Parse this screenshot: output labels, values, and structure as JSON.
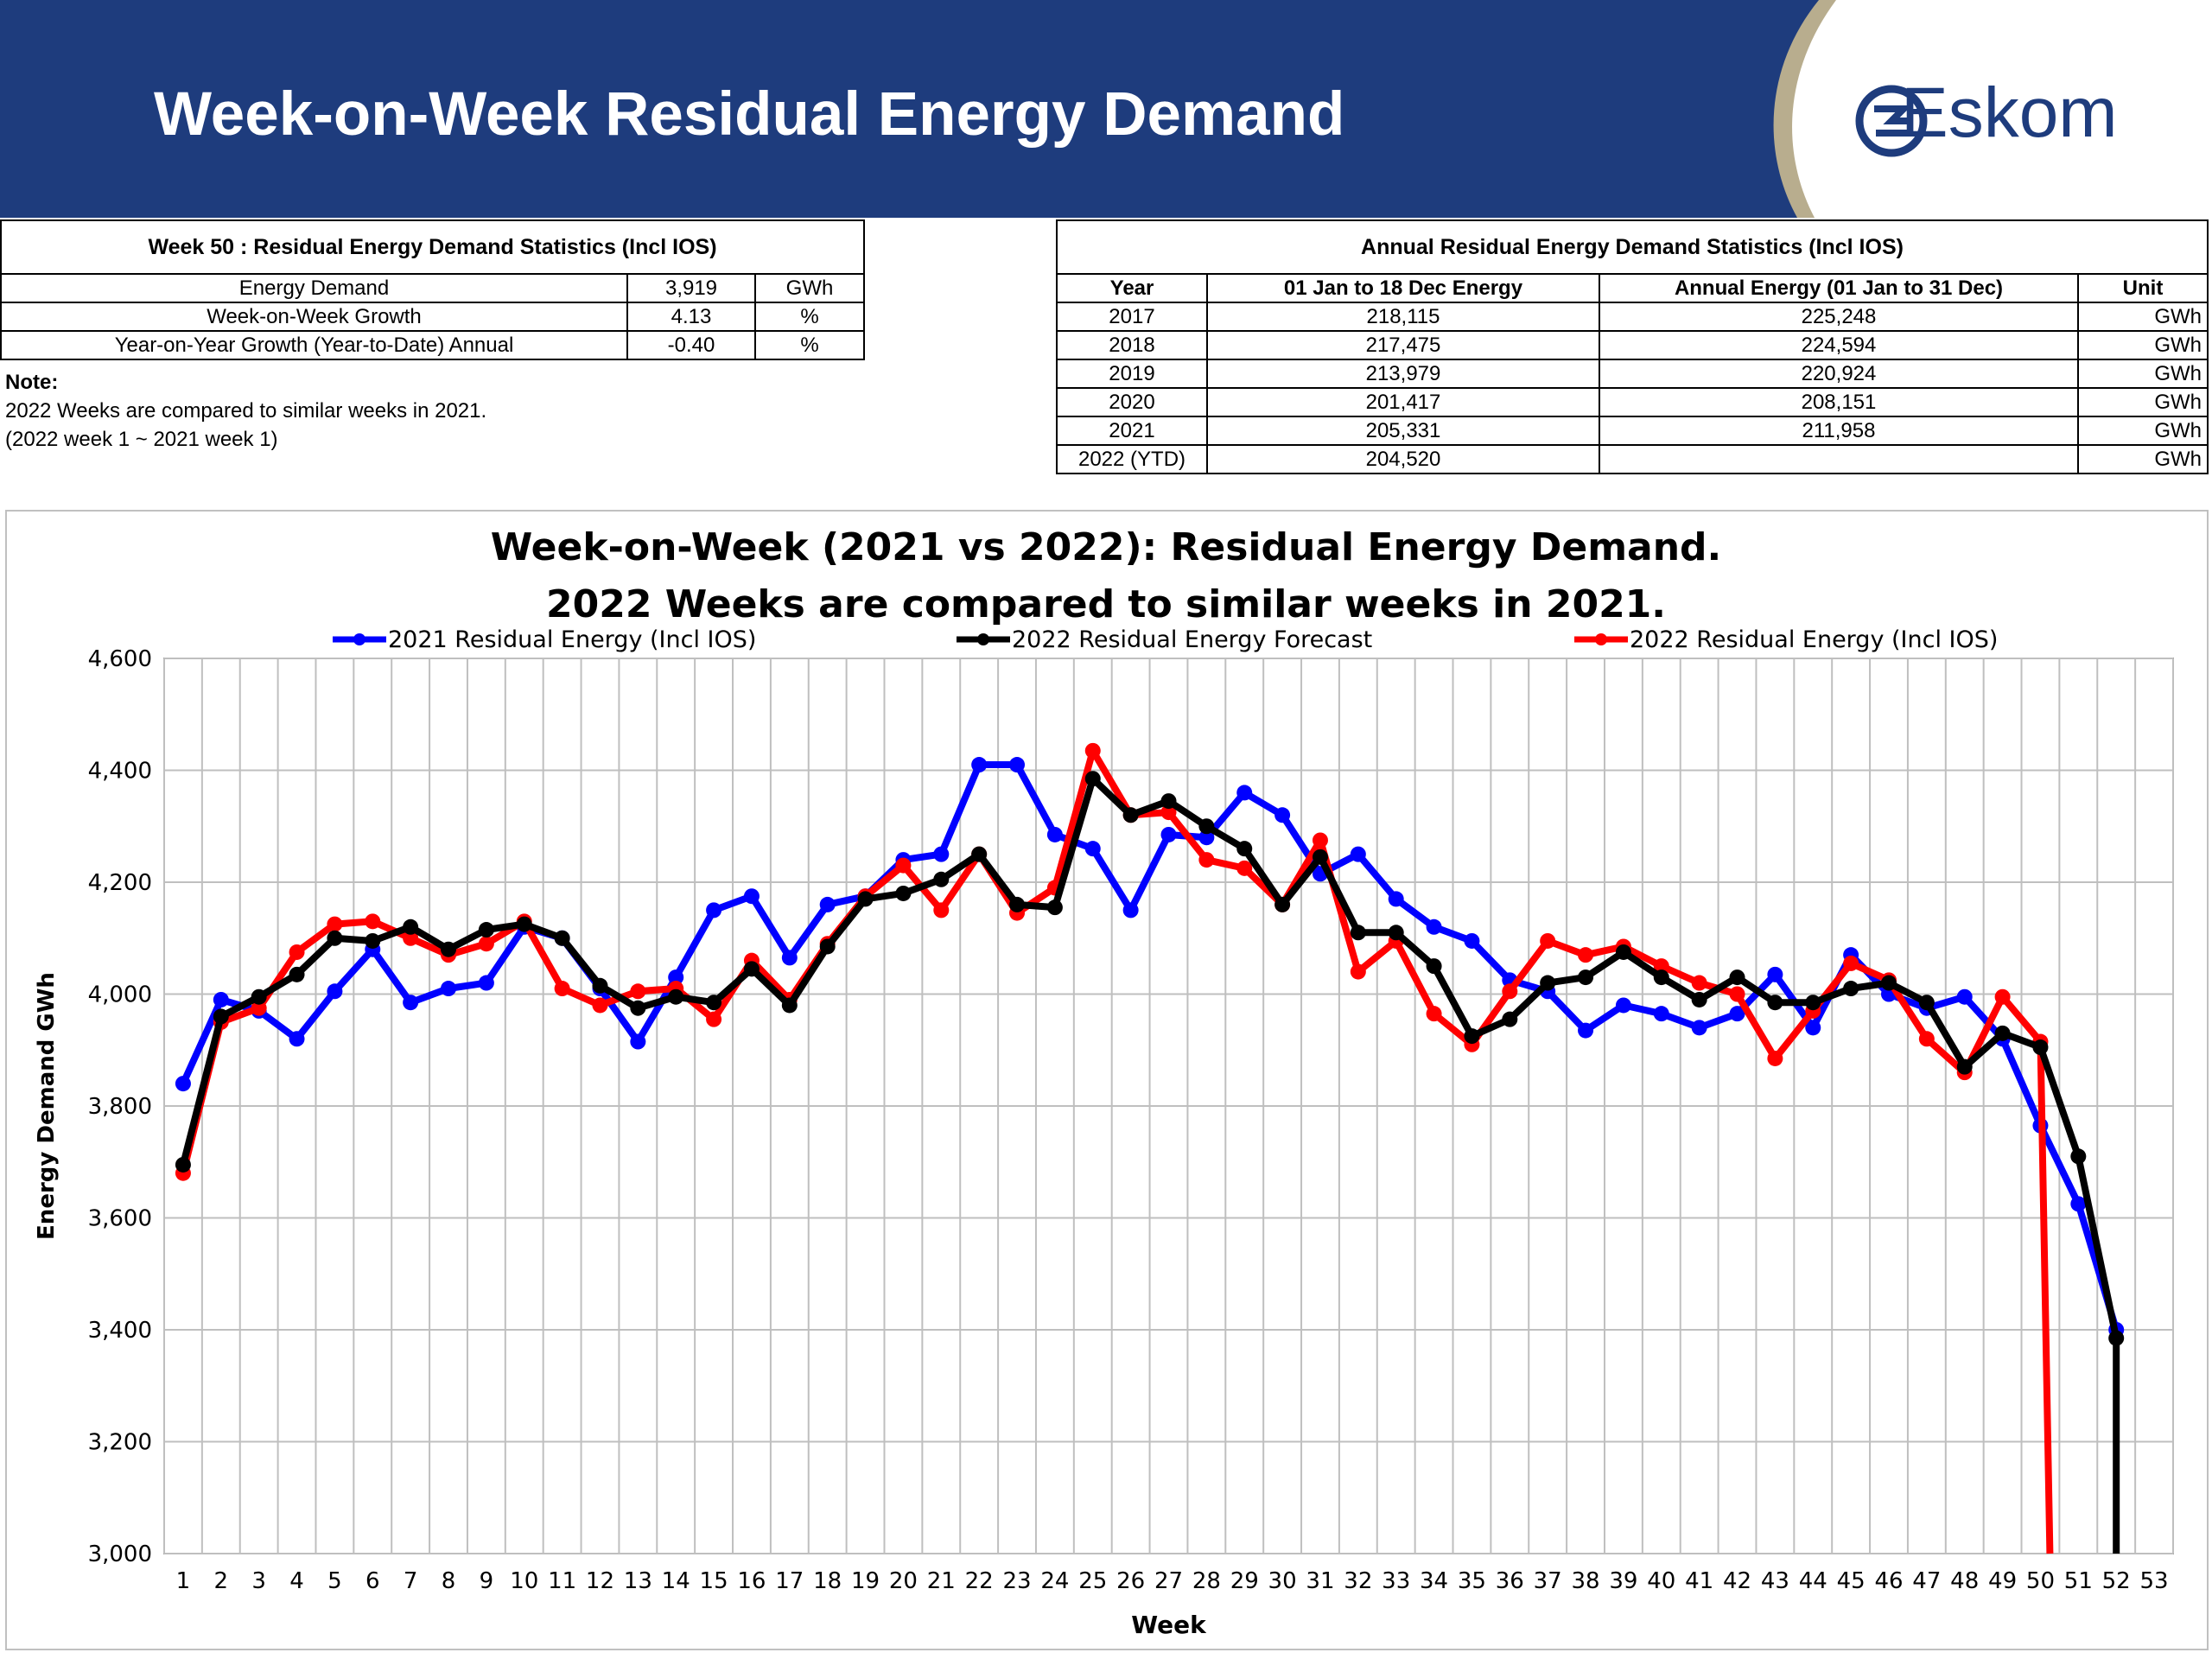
{
  "header": {
    "title": "Week-on-Week Residual Energy Demand",
    "logo_text": "Eskom",
    "brand_color": "#1e3c7d"
  },
  "weekly_stats": {
    "caption": "Week 50 : Residual Energy Demand Statistics (Incl IOS)",
    "rows": [
      {
        "label": "Energy Demand",
        "value": "3,919",
        "unit": "GWh"
      },
      {
        "label": "Week-on-Week Growth",
        "value": "4.13",
        "unit": "%"
      },
      {
        "label": "Year-on-Year Growth (Year-to-Date) Annual",
        "value": "-0.40",
        "unit": "%"
      }
    ]
  },
  "note": {
    "label": "Note:",
    "lines": [
      "2022 Weeks are compared to similar weeks in 2021.",
      "(2022 week 1 ~ 2021 week 1)"
    ]
  },
  "annual_stats": {
    "caption": "Annual Residual Energy Demand Statistics (Incl IOS)",
    "headers": [
      "Year",
      "01 Jan to 18 Dec Energy",
      "Annual Energy (01 Jan to 31 Dec)",
      "Unit"
    ],
    "rows": [
      [
        "2017",
        "218,115",
        "225,248",
        "GWh"
      ],
      [
        "2018",
        "217,475",
        "224,594",
        "GWh"
      ],
      [
        "2019",
        "213,979",
        "220,924",
        "GWh"
      ],
      [
        "2020",
        "201,417",
        "208,151",
        "GWh"
      ],
      [
        "2021",
        "205,331",
        "211,958",
        "GWh"
      ],
      [
        "2022 (YTD)",
        "204,520",
        "",
        "GWh"
      ]
    ]
  },
  "chart_data": {
    "type": "line",
    "title_lines": [
      "Week-on-Week (2021 vs 2022): Residual Energy Demand.",
      "2022 Weeks are compared to similar weeks in 2021."
    ],
    "xlabel": "Week",
    "ylabel": "Energy Demand GWh",
    "ylim": [
      3000,
      4600
    ],
    "yticks": [
      3000,
      3200,
      3400,
      3600,
      3800,
      4000,
      4200,
      4400,
      4600
    ],
    "yticklabels": [
      "3,000",
      "3,200",
      "3,400",
      "3,600",
      "3,800",
      "4,000",
      "4,200",
      "4,400",
      "4,600"
    ],
    "xlim": [
      0.5,
      53.5
    ],
    "xticks": [
      1,
      2,
      3,
      4,
      5,
      6,
      7,
      8,
      9,
      10,
      11,
      12,
      13,
      14,
      15,
      16,
      17,
      18,
      19,
      20,
      21,
      22,
      23,
      24,
      25,
      26,
      27,
      28,
      29,
      30,
      31,
      32,
      33,
      34,
      35,
      36,
      37,
      38,
      39,
      40,
      41,
      42,
      43,
      44,
      45,
      46,
      47,
      48,
      49,
      50,
      51,
      52,
      53
    ],
    "grid": true,
    "legend_position": "top",
    "series": [
      {
        "name": "2021 Residual Energy (Incl IOS)",
        "color": "#0000ff",
        "x": [
          1,
          2,
          3,
          4,
          5,
          6,
          7,
          8,
          9,
          10,
          11,
          12,
          13,
          14,
          15,
          16,
          17,
          18,
          19,
          20,
          21,
          22,
          23,
          24,
          25,
          26,
          27,
          28,
          29,
          30,
          31,
          32,
          33,
          34,
          35,
          36,
          37,
          38,
          39,
          40,
          41,
          42,
          43,
          44,
          45,
          46,
          47,
          48,
          49,
          50,
          51,
          52
        ],
        "values": [
          3840,
          3990,
          3970,
          3920,
          4005,
          4080,
          3985,
          4010,
          4020,
          4120,
          4100,
          4010,
          3915,
          4030,
          4150,
          4175,
          4065,
          4160,
          4175,
          4240,
          4250,
          4410,
          4410,
          4285,
          4260,
          4150,
          4285,
          4280,
          4360,
          4320,
          4215,
          4250,
          4170,
          4120,
          4095,
          4025,
          4005,
          3935,
          3980,
          3965,
          3940,
          3965,
          4035,
          3940,
          4070,
          4000,
          3975,
          3995,
          3920,
          3765,
          3625,
          3400
        ]
      },
      {
        "name": "2022 Residual Energy Forecast",
        "color": "#000000",
        "x": [
          1,
          2,
          3,
          4,
          5,
          6,
          7,
          8,
          9,
          10,
          11,
          12,
          13,
          14,
          15,
          16,
          17,
          18,
          19,
          20,
          21,
          22,
          23,
          24,
          25,
          26,
          27,
          28,
          29,
          30,
          31,
          32,
          33,
          34,
          35,
          36,
          37,
          38,
          39,
          40,
          41,
          42,
          43,
          44,
          45,
          46,
          47,
          48,
          49,
          50,
          51,
          52,
          52
        ],
        "values": [
          3695,
          3960,
          3995,
          4035,
          4100,
          4095,
          4120,
          4080,
          4115,
          4125,
          4100,
          4015,
          3975,
          3995,
          3985,
          4045,
          3980,
          4085,
          4170,
          4180,
          4205,
          4250,
          4160,
          4155,
          4385,
          4320,
          4345,
          4300,
          4260,
          4160,
          4245,
          4110,
          4110,
          4050,
          3925,
          3955,
          4020,
          4030,
          4075,
          4030,
          3990,
          4030,
          3985,
          3985,
          4010,
          4020,
          3985,
          3870,
          3930,
          3905,
          3710,
          3385,
          3000
        ]
      },
      {
        "name": "2022 Residual Energy (Incl IOS)",
        "color": "#ff0000",
        "x": [
          1,
          2,
          3,
          4,
          5,
          6,
          7,
          8,
          9,
          10,
          11,
          12,
          13,
          14,
          15,
          16,
          17,
          18,
          19,
          20,
          21,
          22,
          23,
          24,
          25,
          26,
          27,
          28,
          29,
          30,
          31,
          32,
          33,
          34,
          35,
          36,
          37,
          38,
          39,
          40,
          41,
          42,
          43,
          44,
          45,
          46,
          47,
          48,
          49,
          50,
          50.25
        ],
        "values": [
          3680,
          3950,
          3975,
          4075,
          4125,
          4130,
          4100,
          4070,
          4090,
          4130,
          4010,
          3980,
          4005,
          4010,
          3955,
          4060,
          3990,
          4090,
          4175,
          4230,
          4150,
          4250,
          4145,
          4190,
          4435,
          4320,
          4325,
          4240,
          4225,
          4160,
          4275,
          4040,
          4095,
          3965,
          3910,
          4005,
          4095,
          4070,
          4085,
          4050,
          4020,
          4000,
          3885,
          3970,
          4055,
          4025,
          3920,
          3860,
          3995,
          3915,
          3000
        ]
      }
    ]
  }
}
